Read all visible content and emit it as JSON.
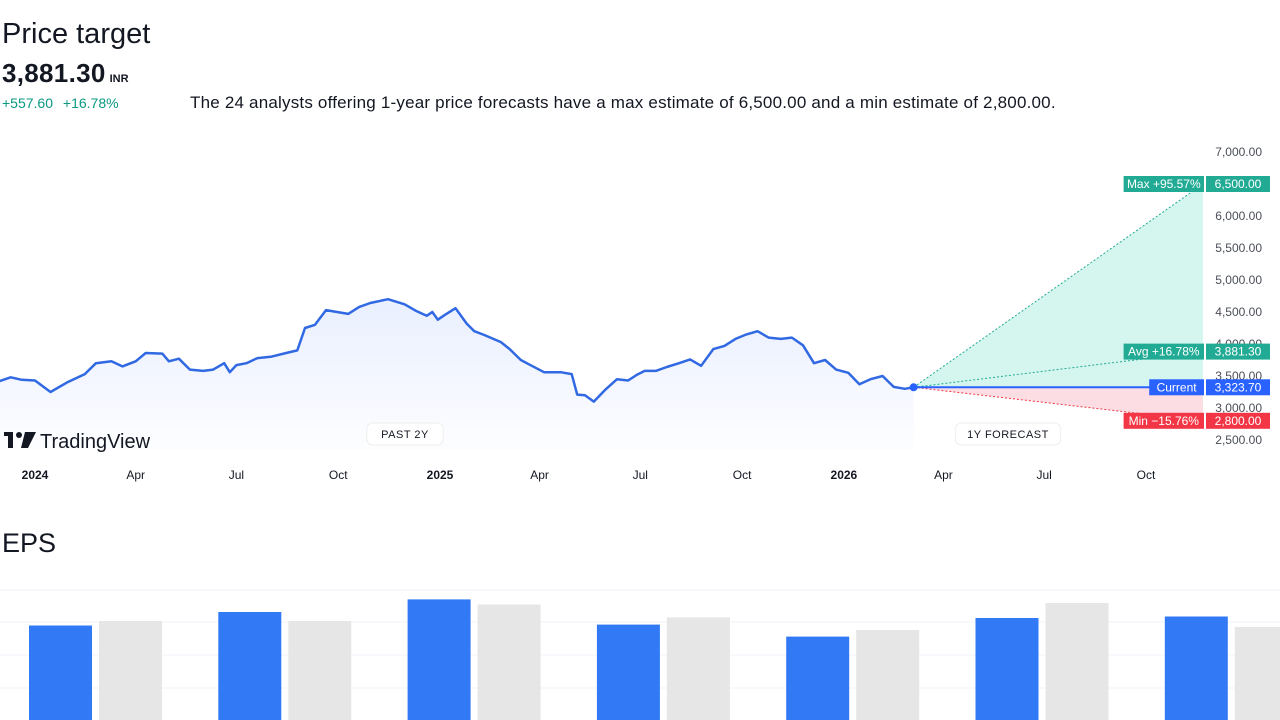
{
  "header": {
    "title": "Price target",
    "price": "3,881.30",
    "currency": "INR",
    "change_abs": "+557.60",
    "change_pct": "+16.78%",
    "summary": "The 24 analysts offering 1-year price forecasts have a max estimate of 6,500.00 and a min estimate of 2,800.00."
  },
  "logo": {
    "text": "TradingView",
    "icon": "tradingview-logo-icon"
  },
  "colors": {
    "line": "#3169e3",
    "max": "#22ab94",
    "avg": "#22ab94",
    "current": "#2962ff",
    "min": "#f23645",
    "up_area": "#d4f6ee",
    "down_area": "#fbdde3",
    "bar_actual": "#3179f5",
    "bar_estimate": "#e6e6e6"
  },
  "chart_data": {
    "type": "line",
    "y_ticks": [
      "7,000.00",
      "6,000.00",
      "5,500.00",
      "5,000.00",
      "4,500.00",
      "4,000.00",
      "3,500.00",
      "3,000.00",
      "2,500.00"
    ],
    "y_tick_values": [
      7000,
      6000,
      5500,
      5000,
      4500,
      4000,
      3500,
      3000,
      2500
    ],
    "ylim": [
      2500,
      7000
    ],
    "x_ticks": [
      {
        "label": "2024",
        "date": "2024-01",
        "bold": true
      },
      {
        "label": "Apr",
        "date": "2024-04"
      },
      {
        "label": "Jul",
        "date": "2024-07"
      },
      {
        "label": "Oct",
        "date": "2024-10"
      },
      {
        "label": "2025",
        "date": "2025-01",
        "bold": true
      },
      {
        "label": "Apr",
        "date": "2025-04"
      },
      {
        "label": "Jul",
        "date": "2025-07"
      },
      {
        "label": "Oct",
        "date": "2025-10"
      },
      {
        "label": "2026",
        "date": "2026-01",
        "bold": true
      },
      {
        "label": "Apr",
        "date": "2026-04"
      },
      {
        "label": "Jul",
        "date": "2026-07"
      },
      {
        "label": "Oct",
        "date": "2026-10"
      }
    ],
    "period_labels": {
      "past": "PAST 2Y",
      "forecast": "1Y FORECAST"
    },
    "series": [
      {
        "points": [
          [
            "2023-11-10",
            3850
          ],
          [
            "2023-11-20",
            3390
          ],
          [
            "2023-11-30",
            3420
          ],
          [
            "2023-12-10",
            3480
          ],
          [
            "2023-12-20",
            3440
          ],
          [
            "2024-01-01",
            3430
          ],
          [
            "2024-01-15",
            3250
          ],
          [
            "2024-01-30",
            3400
          ],
          [
            "2024-02-15",
            3530
          ],
          [
            "2024-02-25",
            3700
          ],
          [
            "2024-03-10",
            3730
          ],
          [
            "2024-03-20",
            3650
          ],
          [
            "2024-04-01",
            3730
          ],
          [
            "2024-04-10",
            3860
          ],
          [
            "2024-04-25",
            3850
          ],
          [
            "2024-05-01",
            3730
          ],
          [
            "2024-05-10",
            3770
          ],
          [
            "2024-05-20",
            3600
          ],
          [
            "2024-06-01",
            3580
          ],
          [
            "2024-06-10",
            3600
          ],
          [
            "2024-06-20",
            3700
          ],
          [
            "2024-06-25",
            3560
          ],
          [
            "2024-07-01",
            3670
          ],
          [
            "2024-07-10",
            3700
          ],
          [
            "2024-07-20",
            3780
          ],
          [
            "2024-08-01",
            3800
          ],
          [
            "2024-08-15",
            3860
          ],
          [
            "2024-08-25",
            3900
          ],
          [
            "2024-09-01",
            4250
          ],
          [
            "2024-09-10",
            4300
          ],
          [
            "2024-09-20",
            4530
          ],
          [
            "2024-09-30",
            4500
          ],
          [
            "2024-10-10",
            4470
          ],
          [
            "2024-10-20",
            4580
          ],
          [
            "2024-10-30",
            4640
          ],
          [
            "2024-11-15",
            4700
          ],
          [
            "2024-11-30",
            4620
          ],
          [
            "2024-12-10",
            4520
          ],
          [
            "2024-12-20",
            4440
          ],
          [
            "2024-12-25",
            4500
          ],
          [
            "2024-12-30",
            4380
          ],
          [
            "2025-01-05",
            4450
          ],
          [
            "2025-01-15",
            4560
          ],
          [
            "2025-01-25",
            4320
          ],
          [
            "2025-02-01",
            4200
          ],
          [
            "2025-02-10",
            4140
          ],
          [
            "2025-02-25",
            4030
          ],
          [
            "2025-03-05",
            3920
          ],
          [
            "2025-03-15",
            3750
          ],
          [
            "2025-03-25",
            3660
          ],
          [
            "2025-04-05",
            3560
          ],
          [
            "2025-04-20",
            3560
          ],
          [
            "2025-04-30",
            3530
          ],
          [
            "2025-05-05",
            3210
          ],
          [
            "2025-05-12",
            3200
          ],
          [
            "2025-05-20",
            3100
          ],
          [
            "2025-05-30",
            3280
          ],
          [
            "2025-06-10",
            3450
          ],
          [
            "2025-06-20",
            3430
          ],
          [
            "2025-06-28",
            3520
          ],
          [
            "2025-07-05",
            3580
          ],
          [
            "2025-07-15",
            3580
          ],
          [
            "2025-07-25",
            3640
          ],
          [
            "2025-08-05",
            3700
          ],
          [
            "2025-08-15",
            3760
          ],
          [
            "2025-08-25",
            3660
          ],
          [
            "2025-09-05",
            3920
          ],
          [
            "2025-09-15",
            3970
          ],
          [
            "2025-09-25",
            4080
          ],
          [
            "2025-10-05",
            4150
          ],
          [
            "2025-10-15",
            4200
          ],
          [
            "2025-10-25",
            4100
          ],
          [
            "2025-11-05",
            4080
          ],
          [
            "2025-11-15",
            4100
          ],
          [
            "2025-11-25",
            3980
          ],
          [
            "2025-12-05",
            3700
          ],
          [
            "2025-12-15",
            3750
          ],
          [
            "2025-12-25",
            3600
          ],
          [
            "2026-01-05",
            3550
          ],
          [
            "2026-01-15",
            3370
          ],
          [
            "2026-01-25",
            3450
          ],
          [
            "2026-02-05",
            3500
          ],
          [
            "2026-02-15",
            3330
          ],
          [
            "2026-02-25",
            3300
          ],
          [
            "2026-03-05",
            3323.7
          ]
        ]
      }
    ],
    "forecast": {
      "start": [
        "2026-03-05",
        3323.7
      ],
      "end_date": "2027-03-05",
      "max": 6500,
      "avg": 3881.3,
      "current": 3323.7,
      "min": 2800
    },
    "badges": [
      {
        "key": "max",
        "label": "Max +95.57%",
        "value": "6,500.00"
      },
      {
        "key": "avg",
        "label": "Avg +16.78%",
        "value": "3,881.30"
      },
      {
        "key": "current",
        "label": "Current",
        "value": "3,323.70"
      },
      {
        "key": "min",
        "label": "Min −15.76%",
        "value": "2,800.00"
      }
    ]
  },
  "eps": {
    "title": "EPS",
    "chart_data": {
      "type": "bar",
      "series": [
        {
          "values": [
            31.5,
            36.0,
            40.2,
            31.8,
            27.8,
            34.0,
            34.5
          ]
        },
        {
          "values": [
            33.0,
            33.0,
            38.5,
            34.2,
            30.0,
            39.0,
            31.0
          ]
        }
      ],
      "ylim": [
        0,
        45
      ]
    }
  }
}
